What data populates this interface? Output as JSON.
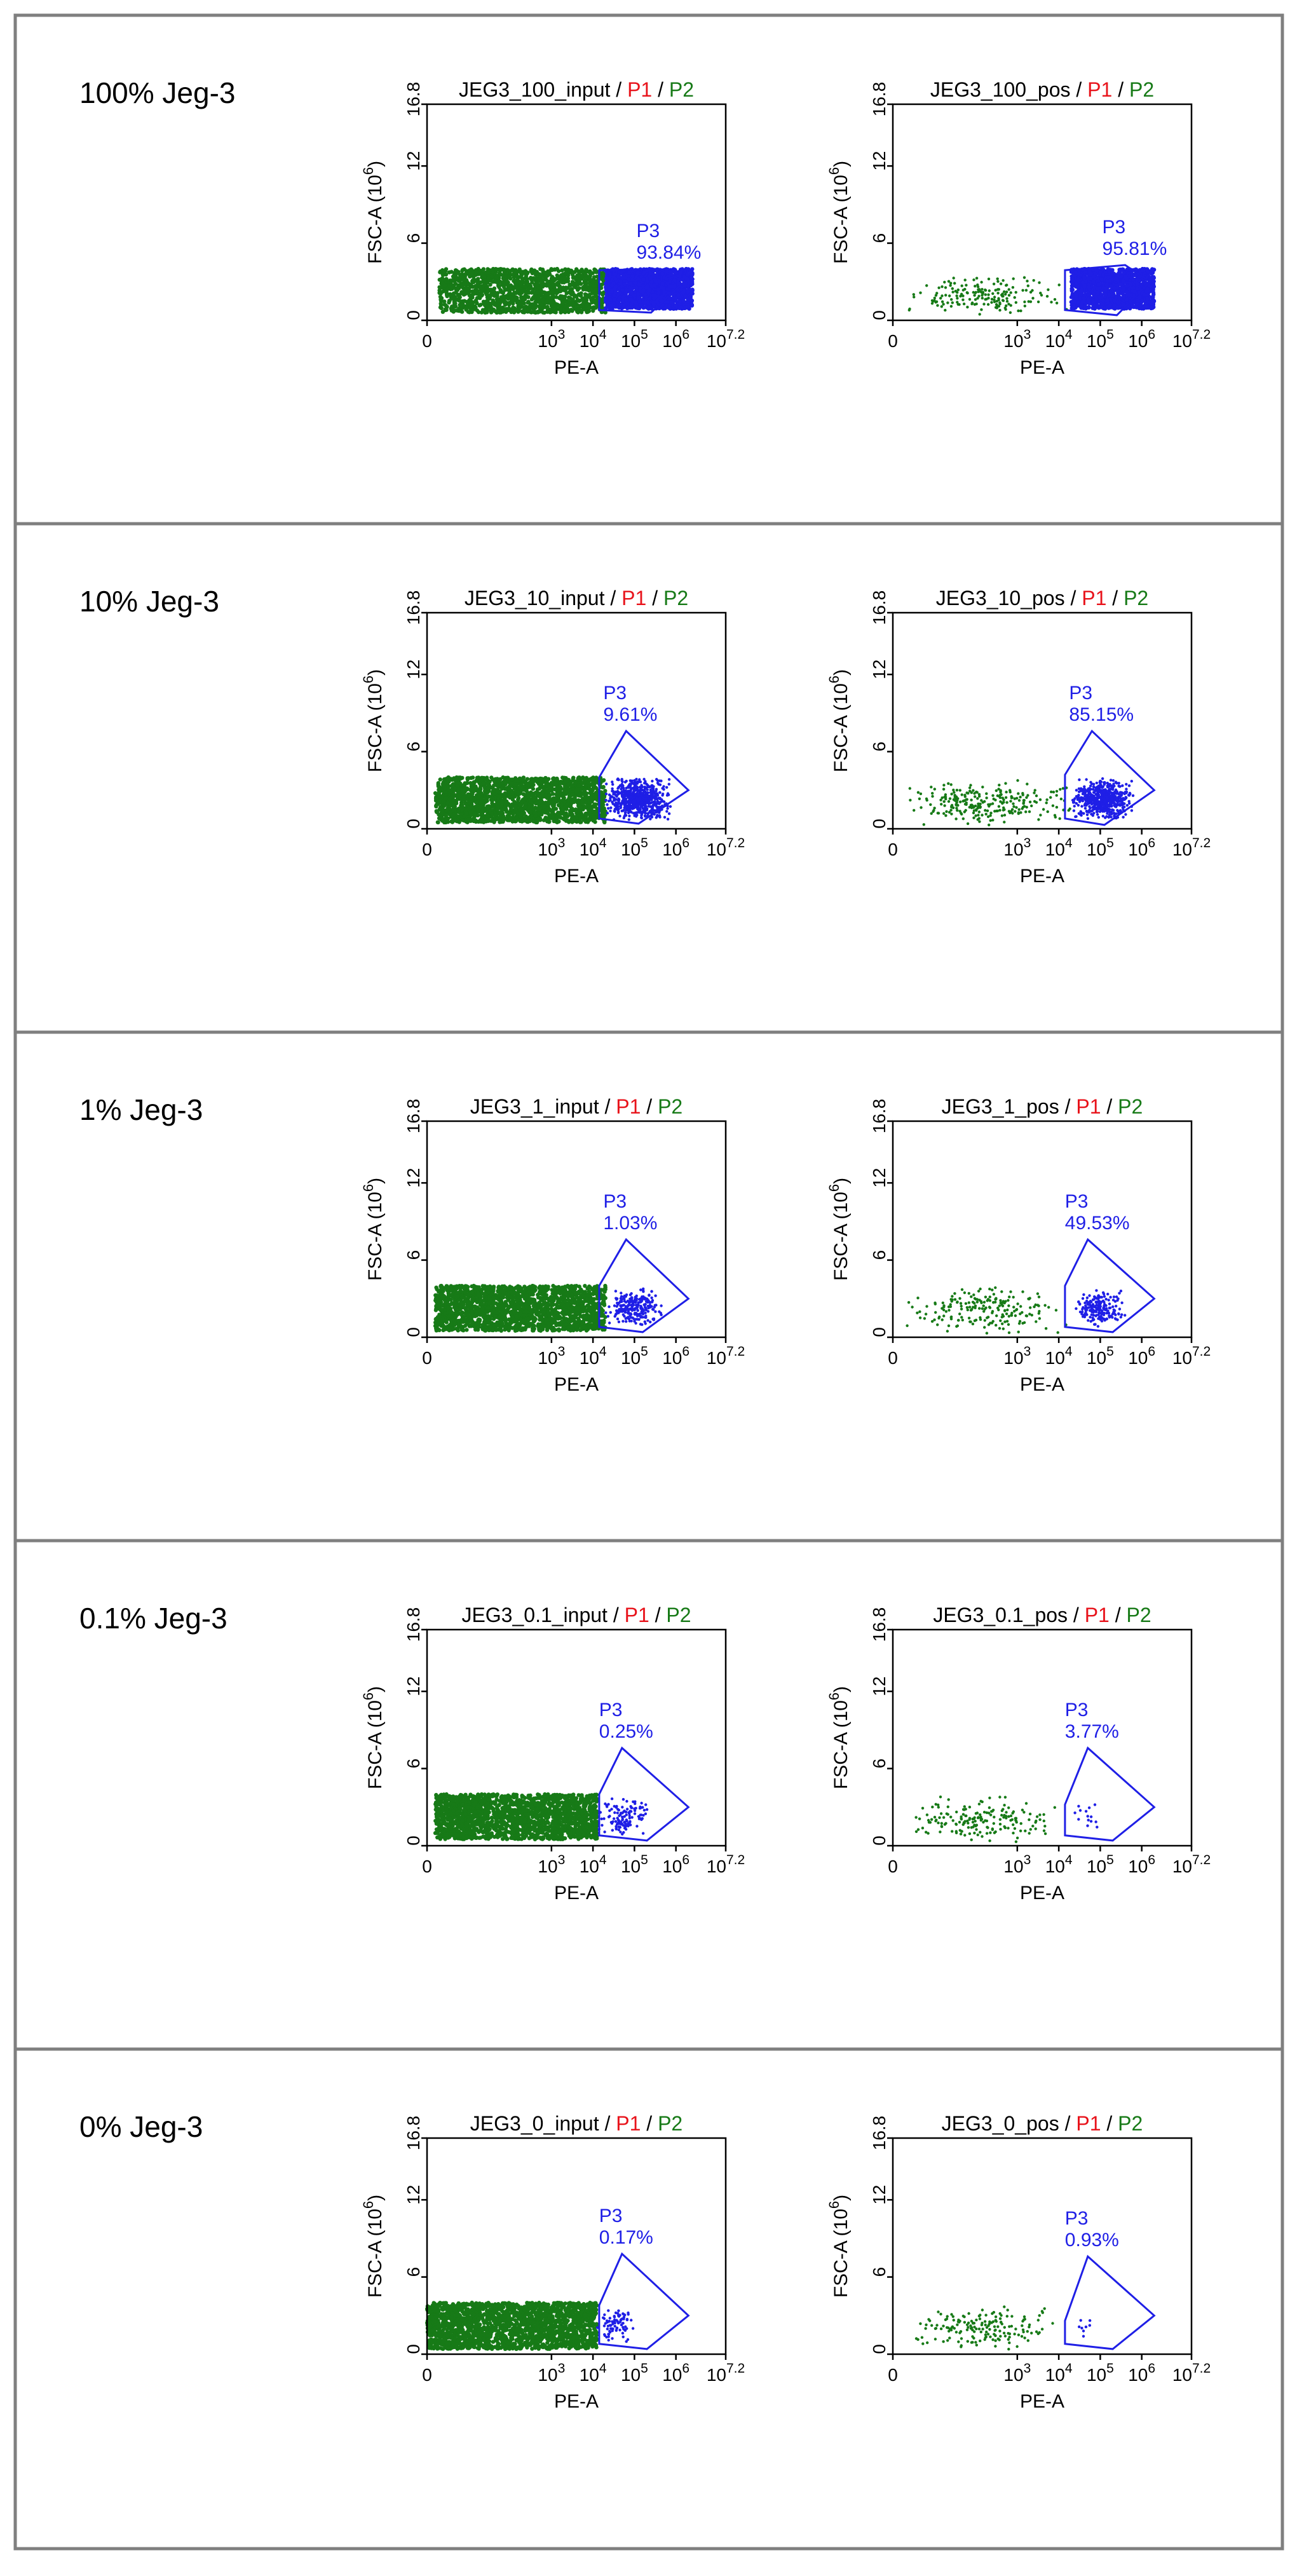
{
  "colors": {
    "frame": "#7f7f7f",
    "p1": "#e8131b",
    "p2": "#177a17",
    "p3": "#1f1fe6",
    "axis": "#000000"
  },
  "chart_data": [
    {
      "type": "scatter",
      "row_label": "100% Jeg-3",
      "title": "JEG3_100_input",
      "title_gates": [
        "P1",
        "P2"
      ],
      "xlabel": "PE-A",
      "ylabel": "FSC-A",
      "ylabel_unit": "(10",
      "ylabel_exp": "6",
      "ylabel_close": ")",
      "x_scale": "log",
      "xlim": [
        0,
        7.2
      ],
      "ylim": [
        0,
        16.8
      ],
      "xticks": [
        "0",
        "10",
        "10",
        "10",
        "10",
        "10"
      ],
      "xtick_exps": [
        "",
        "3",
        "4",
        "5",
        "6",
        "7.2"
      ],
      "xtick_values": [
        0,
        3,
        4,
        5,
        6,
        7.2
      ],
      "yticks": [
        "0",
        "6",
        "12",
        "16.8"
      ],
      "ytick_values": [
        0,
        6,
        12,
        16.8
      ],
      "gate": {
        "name": "P3",
        "percent": "93.84%"
      },
      "series": [
        {
          "name": "P2",
          "x_range": [
            0.3,
            4.3
          ],
          "y_range": [
            0.6,
            4.0
          ],
          "points": 1400
        },
        {
          "name": "P3",
          "x_range": [
            4.3,
            6.4
          ],
          "y_range": [
            0.9,
            4.0
          ],
          "points": 1600
        }
      ]
    },
    {
      "type": "scatter",
      "row_label": "100% Jeg-3",
      "title": "JEG3_100_pos",
      "title_gates": [
        "P1",
        "P2"
      ],
      "xlabel": "PE-A",
      "ylabel": "FSC-A",
      "ylabel_unit": "(10",
      "ylabel_exp": "6",
      "ylabel_close": ")",
      "x_scale": "log",
      "xlim": [
        0,
        7.2
      ],
      "ylim": [
        0,
        16.8
      ],
      "xticks": [
        "0",
        "10",
        "10",
        "10",
        "10",
        "10"
      ],
      "xtick_exps": [
        "",
        "3",
        "4",
        "5",
        "6",
        "7.2"
      ],
      "xtick_values": [
        0,
        3,
        4,
        5,
        6,
        7.2
      ],
      "yticks": [
        "0",
        "6",
        "12",
        "16.8"
      ],
      "ytick_values": [
        0,
        6,
        12,
        16.8
      ],
      "gate": {
        "name": "P3",
        "percent": "95.81%"
      },
      "series": [
        {
          "name": "P2",
          "x_range": [
            0.3,
            4.3
          ],
          "y_range": [
            0.4,
            3.5
          ],
          "points": 180
        },
        {
          "name": "P3",
          "x_range": [
            4.3,
            6.3
          ],
          "y_range": [
            0.9,
            4.0
          ],
          "points": 1200
        }
      ]
    },
    {
      "type": "scatter",
      "row_label": "10% Jeg-3",
      "title": "JEG3_10_input",
      "title_gates": [
        "P1",
        "P2"
      ],
      "xlabel": "PE-A",
      "ylabel": "FSC-A",
      "ylabel_unit": "(10",
      "ylabel_exp": "6",
      "ylabel_close": ")",
      "x_scale": "log",
      "xlim": [
        0,
        7.2
      ],
      "ylim": [
        0,
        16.8
      ],
      "xticks": [
        "0",
        "10",
        "10",
        "10",
        "10",
        "10"
      ],
      "xtick_exps": [
        "",
        "3",
        "4",
        "5",
        "6",
        "7.2"
      ],
      "xtick_values": [
        0,
        3,
        4,
        5,
        6,
        7.2
      ],
      "yticks": [
        "0",
        "6",
        "12",
        "16.8"
      ],
      "ytick_values": [
        0,
        6,
        12,
        16.8
      ],
      "gate": {
        "name": "P3",
        "percent": "9.61%"
      },
      "series": [
        {
          "name": "P2",
          "x_range": [
            0.2,
            4.3
          ],
          "y_range": [
            0.5,
            4.0
          ],
          "points": 1800
        },
        {
          "name": "P3",
          "x_range": [
            4.3,
            5.9
          ],
          "y_range": [
            0.7,
            3.9
          ],
          "points": 700
        }
      ]
    },
    {
      "type": "scatter",
      "row_label": "10% Jeg-3",
      "title": "JEG3_10_pos",
      "title_gates": [
        "P1",
        "P2"
      ],
      "xlabel": "PE-A",
      "ylabel": "FSC-A",
      "ylabel_unit": "(10",
      "ylabel_exp": "6",
      "ylabel_close": ")",
      "x_scale": "log",
      "xlim": [
        0,
        7.2
      ],
      "ylim": [
        0,
        16.8
      ],
      "xticks": [
        "0",
        "10",
        "10",
        "10",
        "10",
        "10"
      ],
      "xtick_exps": [
        "",
        "3",
        "4",
        "5",
        "6",
        "7.2"
      ],
      "xtick_values": [
        0,
        3,
        4,
        5,
        6,
        7.2
      ],
      "yticks": [
        "0",
        "6",
        "12",
        "16.8"
      ],
      "ytick_values": [
        0,
        6,
        12,
        16.8
      ],
      "gate": {
        "name": "P3",
        "percent": "85.15%"
      },
      "series": [
        {
          "name": "P2",
          "x_range": [
            0.2,
            4.3
          ],
          "y_range": [
            0.3,
            3.8
          ],
          "points": 260
        },
        {
          "name": "P3",
          "x_range": [
            4.3,
            5.8
          ],
          "y_range": [
            0.8,
            3.9
          ],
          "points": 600
        }
      ]
    },
    {
      "type": "scatter",
      "row_label": "1% Jeg-3",
      "title": "JEG3_1_input",
      "title_gates": [
        "P1",
        "P2"
      ],
      "xlabel": "PE-A",
      "ylabel": "FSC-A",
      "ylabel_unit": "(10",
      "ylabel_exp": "6",
      "ylabel_close": ")",
      "x_scale": "log",
      "xlim": [
        0,
        7.2
      ],
      "ylim": [
        0,
        16.8
      ],
      "xticks": [
        "0",
        "10",
        "10",
        "10",
        "10",
        "10"
      ],
      "xtick_exps": [
        "",
        "3",
        "4",
        "5",
        "6",
        "7.2"
      ],
      "xtick_values": [
        0,
        3,
        4,
        5,
        6,
        7.2
      ],
      "yticks": [
        "0",
        "6",
        "12",
        "16.8"
      ],
      "ytick_values": [
        0,
        6,
        12,
        16.8
      ],
      "gate": {
        "name": "P3",
        "percent": "1.03%"
      },
      "series": [
        {
          "name": "P2",
          "x_range": [
            0.2,
            4.3
          ],
          "y_range": [
            0.5,
            4.0
          ],
          "points": 1800
        },
        {
          "name": "P3",
          "x_range": [
            4.3,
            5.7
          ],
          "y_range": [
            0.8,
            3.8
          ],
          "points": 250
        }
      ]
    },
    {
      "type": "scatter",
      "row_label": "1% Jeg-3",
      "title": "JEG3_1_pos",
      "title_gates": [
        "P1",
        "P2"
      ],
      "xlabel": "PE-A",
      "ylabel": "FSC-A",
      "ylabel_unit": "(10",
      "ylabel_exp": "6",
      "ylabel_close": ")",
      "x_scale": "log",
      "xlim": [
        0,
        7.2
      ],
      "ylim": [
        0,
        16.8
      ],
      "xticks": [
        "0",
        "10",
        "10",
        "10",
        "10",
        "10"
      ],
      "xtick_exps": [
        "",
        "3",
        "4",
        "5",
        "6",
        "7.2"
      ],
      "xtick_values": [
        0,
        3,
        4,
        5,
        6,
        7.2
      ],
      "yticks": [
        "0",
        "6",
        "12",
        "16.8"
      ],
      "ytick_values": [
        0,
        6,
        12,
        16.8
      ],
      "gate": {
        "name": "P3",
        "percent": "49.53%"
      },
      "series": [
        {
          "name": "P2",
          "x_range": [
            0.2,
            4.2
          ],
          "y_range": [
            0.3,
            4.0
          ],
          "points": 200
        },
        {
          "name": "P3",
          "x_range": [
            4.4,
            5.6
          ],
          "y_range": [
            0.8,
            3.7
          ],
          "points": 200
        }
      ]
    },
    {
      "type": "scatter",
      "row_label": "0.1% Jeg-3",
      "title": "JEG3_0.1_input",
      "title_gates": [
        "P1",
        "P2"
      ],
      "xlabel": "PE-A",
      "ylabel": "FSC-A",
      "ylabel_unit": "(10",
      "ylabel_exp": "6",
      "ylabel_close": ")",
      "x_scale": "log",
      "xlim": [
        0,
        7.2
      ],
      "ylim": [
        0,
        16.8
      ],
      "xticks": [
        "0",
        "10",
        "10",
        "10",
        "10",
        "10"
      ],
      "xtick_exps": [
        "",
        "3",
        "4",
        "5",
        "6",
        "7.2"
      ],
      "xtick_values": [
        0,
        3,
        4,
        5,
        6,
        7.2
      ],
      "yticks": [
        "0",
        "6",
        "12",
        "16.8"
      ],
      "ytick_values": [
        0,
        6,
        12,
        16.8
      ],
      "gate": {
        "name": "P3",
        "percent": "0.25%"
      },
      "series": [
        {
          "name": "P2",
          "x_range": [
            0.2,
            4.1
          ],
          "y_range": [
            0.5,
            4.0
          ],
          "points": 1800
        },
        {
          "name": "P3",
          "x_range": [
            4.1,
            5.4
          ],
          "y_range": [
            0.8,
            3.7
          ],
          "points": 120
        }
      ]
    },
    {
      "type": "scatter",
      "row_label": "0.1% Jeg-3",
      "title": "JEG3_0.1_pos",
      "title_gates": [
        "P1",
        "P2"
      ],
      "xlabel": "PE-A",
      "ylabel": "FSC-A",
      "ylabel_unit": "(10",
      "ylabel_exp": "6",
      "ylabel_close": ")",
      "x_scale": "log",
      "xlim": [
        0,
        7.2
      ],
      "ylim": [
        0,
        16.8
      ],
      "xticks": [
        "0",
        "10",
        "10",
        "10",
        "10",
        "10"
      ],
      "xtick_exps": [
        "",
        "3",
        "4",
        "5",
        "6",
        "7.2"
      ],
      "xtick_values": [
        0,
        3,
        4,
        5,
        6,
        7.2
      ],
      "yticks": [
        "0",
        "6",
        "12",
        "16.8"
      ],
      "ytick_values": [
        0,
        6,
        12,
        16.8
      ],
      "gate": {
        "name": "P3",
        "percent": "3.77%"
      },
      "series": [
        {
          "name": "P2",
          "x_range": [
            0.2,
            4.0
          ],
          "y_range": [
            0.3,
            3.8
          ],
          "points": 180
        },
        {
          "name": "P3",
          "x_range": [
            4.3,
            5.1
          ],
          "y_range": [
            1.2,
            3.4
          ],
          "points": 14
        }
      ]
    },
    {
      "type": "scatter",
      "row_label": "0% Jeg-3",
      "title": "JEG3_0_input",
      "title_gates": [
        "P1",
        "P2"
      ],
      "xlabel": "PE-A",
      "ylabel": "FSC-A",
      "ylabel_unit": "(10",
      "ylabel_exp": "6",
      "ylabel_close": ")",
      "x_scale": "log",
      "xlim": [
        0,
        7.2
      ],
      "ylim": [
        0,
        16.8
      ],
      "xticks": [
        "0",
        "10",
        "10",
        "10",
        "10",
        "10"
      ],
      "xtick_exps": [
        "",
        "3",
        "4",
        "5",
        "6",
        "7.2"
      ],
      "xtick_values": [
        0,
        3,
        4,
        5,
        6,
        7.2
      ],
      "yticks": [
        "0",
        "6",
        "12",
        "16.8"
      ],
      "ytick_values": [
        0,
        6,
        12,
        16.8
      ],
      "gate": {
        "name": "P3",
        "percent": "0.17%"
      },
      "series": [
        {
          "name": "P2",
          "x_range": [
            0.0,
            4.1
          ],
          "y_range": [
            0.4,
            4.0
          ],
          "points": 2000
        },
        {
          "name": "P3",
          "x_range": [
            4.1,
            5.0
          ],
          "y_range": [
            0.8,
            3.8
          ],
          "points": 80
        }
      ]
    },
    {
      "type": "scatter",
      "row_label": "0% Jeg-3",
      "title": "JEG3_0_pos",
      "title_gates": [
        "P1",
        "P2"
      ],
      "xlabel": "PE-A",
      "ylabel": "FSC-A",
      "ylabel_unit": "(10",
      "ylabel_exp": "6",
      "ylabel_close": ")",
      "x_scale": "log",
      "xlim": [
        0,
        7.2
      ],
      "ylim": [
        0,
        16.8
      ],
      "xticks": [
        "0",
        "10",
        "10",
        "10",
        "10",
        "10"
      ],
      "xtick_exps": [
        "",
        "3",
        "4",
        "5",
        "6",
        "7.2"
      ],
      "xtick_values": [
        0,
        3,
        4,
        5,
        6,
        7.2
      ],
      "yticks": [
        "0",
        "6",
        "12",
        "16.8"
      ],
      "ytick_values": [
        0,
        6,
        12,
        16.8
      ],
      "gate": {
        "name": "P3",
        "percent": "0.93%"
      },
      "series": [
        {
          "name": "P2",
          "x_range": [
            0.2,
            4.0
          ],
          "y_range": [
            0.3,
            3.8
          ],
          "points": 170
        },
        {
          "name": "P3",
          "x_range": [
            4.3,
            4.9
          ],
          "y_range": [
            1.3,
            3.3
          ],
          "points": 8
        }
      ]
    }
  ]
}
